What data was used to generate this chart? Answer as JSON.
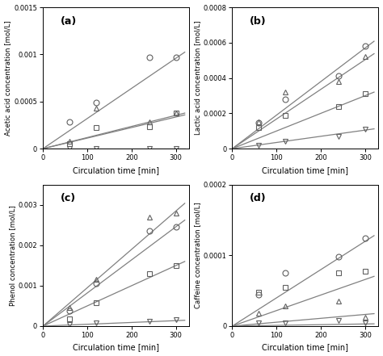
{
  "subplots": [
    {
      "label": "(a)",
      "ylabel": "Acetic acid concentration [mol/L]",
      "ylim": [
        0,
        0.0015
      ],
      "yticks": [
        0,
        0.0005,
        0.001,
        0.0015
      ],
      "yticklabels": [
        "0",
        "0.0005",
        "0.001",
        "0.0015"
      ],
      "series": [
        {
          "marker": "o",
          "x_data": [
            60,
            120,
            240,
            300
          ],
          "y_data": [
            0.00028,
            0.00049,
            0.00097,
            0.00097
          ],
          "fit_slope": 3.2e-06,
          "fit_intercept": 0.0
        },
        {
          "marker": "^",
          "x_data": [
            60,
            120,
            240,
            300
          ],
          "y_data": [
            8e-05,
            0.00043,
            0.00028,
            0.00038
          ],
          "fit_slope": 1.18e-06,
          "fit_intercept": 0.0
        },
        {
          "marker": "s",
          "x_data": [
            60,
            120,
            240,
            300
          ],
          "y_data": [
            5e-05,
            0.00022,
            0.00023,
            0.00038
          ],
          "fit_slope": 1.12e-06,
          "fit_intercept": 0.0
        },
        {
          "marker": "v",
          "x_data": [
            60,
            120,
            240,
            300
          ],
          "y_data": [
            3e-06,
            3e-06,
            3e-06,
            3e-06
          ],
          "fit_slope": 0.0,
          "fit_intercept": 0.0
        }
      ]
    },
    {
      "label": "(b)",
      "ylabel": "Lactic acid concentration [mol/L]",
      "ylim": [
        0,
        0.0008
      ],
      "yticks": [
        0,
        0.0002,
        0.0004,
        0.0006,
        0.0008
      ],
      "yticklabels": [
        "0",
        "0.0002",
        "0.0004",
        "0.0006",
        "0.0008"
      ],
      "series": [
        {
          "marker": "o",
          "x_data": [
            60,
            120,
            240,
            300
          ],
          "y_data": [
            0.000145,
            0.00028,
            0.00041,
            0.00058
          ],
          "fit_slope": 1.9e-06,
          "fit_intercept": 0.0
        },
        {
          "marker": "^",
          "x_data": [
            60,
            120,
            240,
            300
          ],
          "y_data": [
            0.00015,
            0.00032,
            0.00038,
            0.00052
          ],
          "fit_slope": 1.68e-06,
          "fit_intercept": 0.0
        },
        {
          "marker": "s",
          "x_data": [
            60,
            120,
            240,
            300
          ],
          "y_data": [
            0.00012,
            0.00019,
            0.00024,
            0.00031
          ],
          "fit_slope": 1e-06,
          "fit_intercept": 0.0
        },
        {
          "marker": "v",
          "x_data": [
            60,
            120,
            240,
            300
          ],
          "y_data": [
            2e-05,
            4e-05,
            7e-05,
            0.00011
          ],
          "fit_slope": 3.5e-07,
          "fit_intercept": 0.0
        }
      ]
    },
    {
      "label": "(c)",
      "ylabel": "Phenol concentration [mol/L]",
      "ylim": [
        0,
        0.0035
      ],
      "yticks": [
        0,
        0.001,
        0.002,
        0.003
      ],
      "yticklabels": [
        "0",
        "0.001",
        "0.002",
        "0.003"
      ],
      "series": [
        {
          "marker": "^",
          "x_data": [
            60,
            120,
            240,
            300
          ],
          "y_data": [
            0.00045,
            0.00115,
            0.0027,
            0.0028
          ],
          "fit_slope": 9.5e-06,
          "fit_intercept": 0.0
        },
        {
          "marker": "o",
          "x_data": [
            60,
            120,
            240,
            300
          ],
          "y_data": [
            0.00038,
            0.00105,
            0.00235,
            0.00245
          ],
          "fit_slope": 8.2e-06,
          "fit_intercept": 0.0
        },
        {
          "marker": "s",
          "x_data": [
            60,
            120,
            240,
            300
          ],
          "y_data": [
            0.00018,
            0.00058,
            0.0013,
            0.0015
          ],
          "fit_slope": 5e-06,
          "fit_intercept": 0.0
        },
        {
          "marker": "v",
          "x_data": [
            60,
            120,
            240,
            300
          ],
          "y_data": [
            4e-05,
            8e-05,
            0.00012,
            0.00015
          ],
          "fit_slope": 4.5e-07,
          "fit_intercept": 0.0
        }
      ]
    },
    {
      "label": "(d)",
      "ylabel": "Caffeine concentration [mol/L]",
      "ylim": [
        0,
        0.0002
      ],
      "yticks": [
        0,
        0.0001,
        0.0002
      ],
      "yticklabels": [
        "0",
        "0.0001",
        "0.0002"
      ],
      "series": [
        {
          "marker": "o",
          "x_data": [
            60,
            120,
            240,
            300
          ],
          "y_data": [
            4.5e-05,
            7.5e-05,
            9.8e-05,
            0.000125
          ],
          "fit_slope": 4e-07,
          "fit_intercept": 0.0
        },
        {
          "marker": "s",
          "x_data": [
            60,
            120,
            240,
            300
          ],
          "y_data": [
            4.8e-05,
            5.5e-05,
            7.5e-05,
            7.8e-05
          ],
          "fit_slope": 2.2e-07,
          "fit_intercept": 0.0
        },
        {
          "marker": "^",
          "x_data": [
            60,
            120,
            240,
            300
          ],
          "y_data": [
            1.8e-05,
            2.8e-05,
            3.5e-05,
            1.2e-05
          ],
          "fit_slope": 5.5e-08,
          "fit_intercept": 0.0
        },
        {
          "marker": "v",
          "x_data": [
            60,
            120,
            240,
            300
          ],
          "y_data": [
            5e-06,
            5e-06,
            8e-06,
            5e-06
          ],
          "fit_slope": 1e-08,
          "fit_intercept": 0.0
        }
      ]
    }
  ],
  "xlabel": "Circulation time [min]",
  "xlim": [
    0,
    330
  ],
  "xticks": [
    0,
    100,
    200,
    300
  ],
  "marker_color": "#606060",
  "line_color": "#808080",
  "marker_size": 5,
  "line_width": 0.9,
  "marker_facecolor": "none",
  "marker_edgewidth": 0.8
}
